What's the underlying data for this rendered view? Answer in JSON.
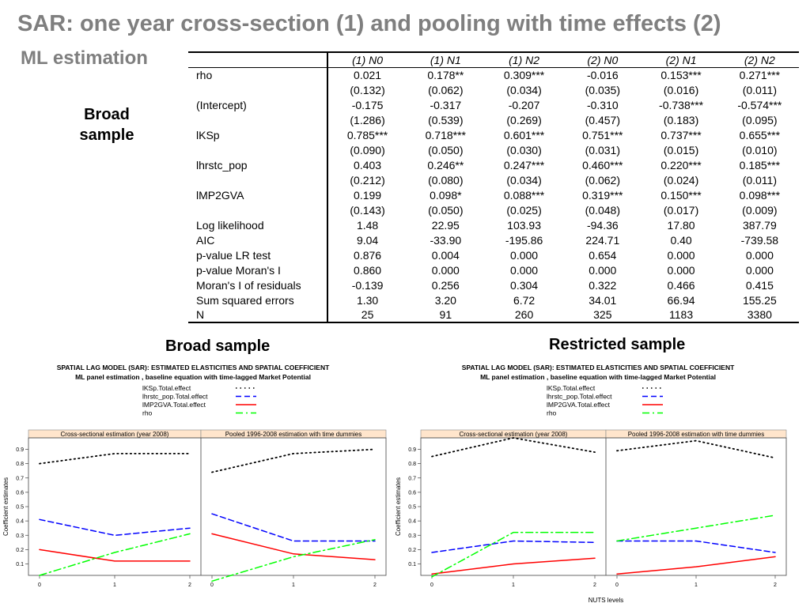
{
  "slide": {
    "title": "SAR: one year cross-section (1) and pooling with time effects (2)",
    "subtitle": "ML estimation",
    "side_label_line1": "Broad",
    "side_label_line2": "sample"
  },
  "table": {
    "columns": [
      "(1) N0",
      "(1) N1",
      "(1) N2",
      "(2) N0",
      "(2) N1",
      "(2) N2"
    ],
    "rows": [
      {
        "label": "rho",
        "cells": [
          "0.021",
          "0.178**",
          "0.309***",
          "-0.016",
          "0.153***",
          "0.271***"
        ]
      },
      {
        "label": "",
        "cells": [
          "(0.132)",
          "(0.062)",
          "(0.034)",
          "(0.035)",
          "(0.016)",
          "(0.011)"
        ]
      },
      {
        "label": "(Intercept)",
        "cells": [
          "-0.175",
          "-0.317",
          "-0.207",
          "-0.310",
          "-0.738***",
          "-0.574***"
        ]
      },
      {
        "label": "",
        "cells": [
          "(1.286)",
          "(0.539)",
          "(0.269)",
          "(0.457)",
          "(0.183)",
          "(0.095)"
        ]
      },
      {
        "label": "lKSp",
        "cells": [
          "0.785***",
          "0.718***",
          "0.601***",
          "0.751***",
          "0.737***",
          "0.655***"
        ]
      },
      {
        "label": "",
        "cells": [
          "(0.090)",
          "(0.050)",
          "(0.030)",
          "(0.031)",
          "(0.015)",
          "(0.010)"
        ]
      },
      {
        "label": "lhrstc_pop",
        "cells": [
          "0.403",
          "0.246**",
          "0.247***",
          "0.460***",
          "0.220***",
          "0.185***"
        ]
      },
      {
        "label": "",
        "cells": [
          "(0.212)",
          "(0.080)",
          "(0.034)",
          "(0.062)",
          "(0.024)",
          "(0.011)"
        ]
      },
      {
        "label": "lMP2GVA",
        "cells": [
          "0.199",
          "0.098*",
          "0.088***",
          "0.319***",
          "0.150***",
          "0.098***"
        ]
      },
      {
        "label": "",
        "cells": [
          "(0.143)",
          "(0.050)",
          "(0.025)",
          "(0.048)",
          "(0.017)",
          "(0.009)"
        ]
      },
      {
        "label": "Log likelihood",
        "cells": [
          "1.48",
          "22.95",
          "103.93",
          "-94.36",
          "17.80",
          "387.79"
        ]
      },
      {
        "label": "AIC",
        "cells": [
          "9.04",
          "-33.90",
          "-195.86",
          "224.71",
          "0.40",
          "-739.58"
        ]
      },
      {
        "label": "p-value LR test",
        "cells": [
          "0.876",
          "0.004",
          "0.000",
          "0.654",
          "0.000",
          "0.000"
        ]
      },
      {
        "label": "p-value Moran's I",
        "cells": [
          "0.860",
          "0.000",
          "0.000",
          "0.000",
          "0.000",
          "0.000"
        ]
      },
      {
        "label": "Moran's I of residuals",
        "cells": [
          "-0.139",
          "0.256",
          "0.304",
          "0.322",
          "0.466",
          "0.415"
        ]
      },
      {
        "label": "Sum squared errors",
        "cells": [
          "1.30",
          "3.20",
          "6.72",
          "34.01",
          "66.94",
          "155.25"
        ]
      },
      {
        "label": "N",
        "cells": [
          "25",
          "91",
          "260",
          "325",
          "1183",
          "3380"
        ]
      }
    ]
  },
  "panels": {
    "broad_heading": "Broad sample",
    "restricted_heading": "Restricted sample"
  },
  "chart_data": [
    {
      "type": "line",
      "title": "SPATIAL LAG MODEL (SAR): ESTIMATED ELASTICITIES AND SPATIAL COEFFICIENT",
      "subtitle": "ML panel estimation , baseline equation with time-lagged Market Potential",
      "xlabel": "",
      "ylabel": "Coefficient estimates",
      "x_ticks": [
        "0",
        "1",
        "2"
      ],
      "y_ticks": [
        "0.1",
        "0.2",
        "0.3",
        "0.4",
        "0.5",
        "0.6",
        "0.7",
        "0.8",
        "0.9"
      ],
      "ylim": [
        0.02,
        0.98
      ],
      "panel_titles": [
        "Cross-sectional estimation (year 2008)",
        "Pooled 1996-2008 estimation with time dummies"
      ],
      "legend_position": "top",
      "series": [
        {
          "name": "lKSp.Total.effect",
          "color": "#000000",
          "style": "dotted",
          "panel1": [
            0.8,
            0.87,
            0.87
          ],
          "panel2": [
            0.74,
            0.87,
            0.9
          ]
        },
        {
          "name": "lhrstc_pop.Total.effect",
          "color": "#0000ff",
          "style": "dashed",
          "panel1": [
            0.41,
            0.3,
            0.35
          ],
          "panel2": [
            0.45,
            0.26,
            0.26
          ]
        },
        {
          "name": "lMP2GVA.Total.effect",
          "color": "#ff0000",
          "style": "solid",
          "panel1": [
            0.2,
            0.12,
            0.12
          ],
          "panel2": [
            0.31,
            0.17,
            0.13
          ]
        },
        {
          "name": "rho",
          "color": "#00ff00",
          "style": "dashdot",
          "panel1": [
            0.02,
            0.18,
            0.31
          ],
          "panel2": [
            -0.02,
            0.15,
            0.27
          ]
        }
      ]
    },
    {
      "type": "line",
      "title": "SPATIAL LAG MODEL (SAR): ESTIMATED ELASTICITIES AND SPATIAL COEFFICIENT",
      "subtitle": "ML panel estimation , baseline equation with time-lagged Market Potential",
      "xlabel": "NUTS levels",
      "ylabel": "Coefficient estimates",
      "x_ticks": [
        "0",
        "1",
        "2"
      ],
      "y_ticks": [
        "0.1",
        "0.2",
        "0.3",
        "0.4",
        "0.5",
        "0.6",
        "0.7",
        "0.8",
        "0.9"
      ],
      "ylim": [
        0.02,
        0.98
      ],
      "panel_titles": [
        "Cross-sectional estimation (year 2008)",
        "Pooled 1996-2008 estimation with time dummies"
      ],
      "legend_position": "top",
      "series": [
        {
          "name": "lKSp.Total.effect",
          "color": "#000000",
          "style": "dotted",
          "panel1": [
            0.85,
            0.98,
            0.88
          ],
          "panel2": [
            0.89,
            0.96,
            0.84
          ]
        },
        {
          "name": "lhrstc_pop.Total.effect",
          "color": "#0000ff",
          "style": "dashed",
          "panel1": [
            0.18,
            0.26,
            0.25
          ],
          "panel2": [
            0.26,
            0.26,
            0.18
          ]
        },
        {
          "name": "lMP2GVA.Total.effect",
          "color": "#ff0000",
          "style": "solid",
          "panel1": [
            0.03,
            0.1,
            0.14
          ],
          "panel2": [
            0.03,
            0.08,
            0.15
          ]
        },
        {
          "name": "rho",
          "color": "#00ff00",
          "style": "dashdot",
          "panel1": [
            0.01,
            0.32,
            0.32
          ],
          "panel2": [
            0.26,
            0.35,
            0.44
          ]
        }
      ]
    }
  ]
}
